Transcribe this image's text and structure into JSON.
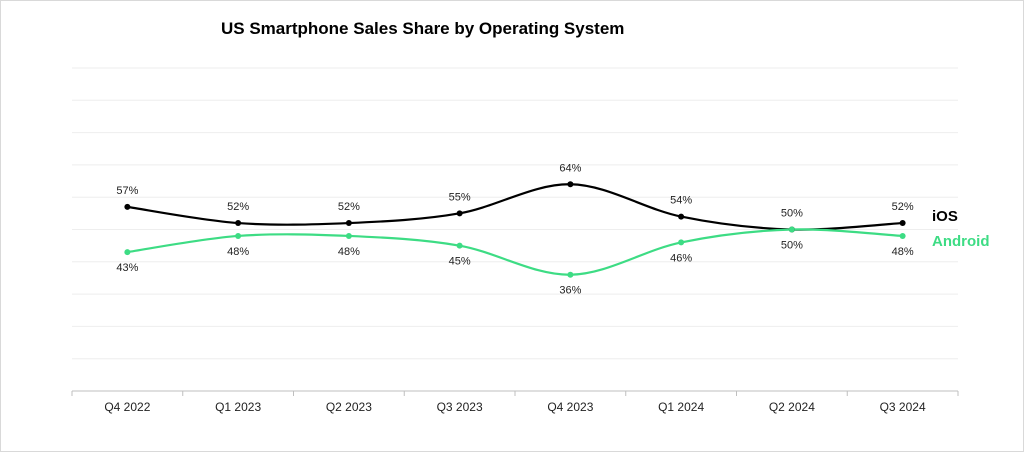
{
  "chart_data": {
    "type": "line",
    "title": "US Smartphone Sales Share by Operating System",
    "xlabel": "",
    "ylabel": "",
    "categories": [
      "Q4 2022",
      "Q1 2023",
      "Q2 2023",
      "Q3 2023",
      "Q4 2023",
      "Q1 2024",
      "Q2 2024",
      "Q3 2024"
    ],
    "series": [
      {
        "name": "iOS",
        "color": "#000000",
        "values": [
          57,
          52,
          52,
          55,
          64,
          54,
          50,
          52
        ],
        "labels": [
          "57%",
          "52%",
          "52%",
          "55%",
          "64%",
          "54%",
          "50%",
          "52%"
        ]
      },
      {
        "name": "Android",
        "color": "#3ddc84",
        "values": [
          43,
          48,
          48,
          45,
          36,
          46,
          50,
          48
        ],
        "labels": [
          "43%",
          "48%",
          "48%",
          "45%",
          "36%",
          "46%",
          "50%",
          "48%"
        ]
      }
    ],
    "ylim": [
      0,
      100
    ],
    "grid": true,
    "legend": "inline-right",
    "smooth": true
  }
}
